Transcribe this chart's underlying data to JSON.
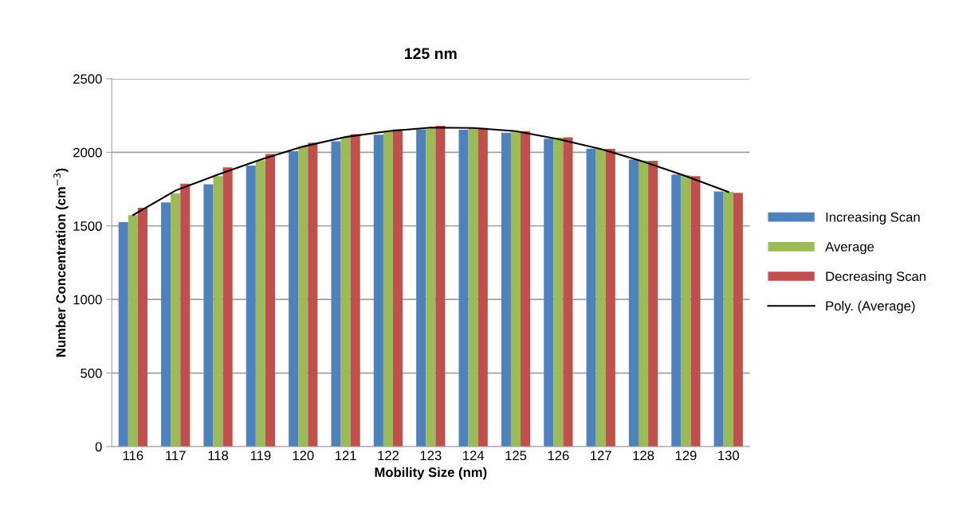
{
  "chart_data": {
    "type": "bar",
    "title": "125 nm",
    "xlabel": "Mobility Size (nm)",
    "ylabel": "Number Concentration (cm$^{−3}$)",
    "categories": [
      "116",
      "117",
      "118",
      "119",
      "120",
      "121",
      "122",
      "123",
      "124",
      "125",
      "126",
      "127",
      "128",
      "129",
      "130"
    ],
    "series": [
      {
        "name": "Increasing Scan",
        "color": "#4f81bd",
        "values": [
          1526,
          1659,
          1783,
          1910,
          2007,
          2075,
          2120,
          2156,
          2153,
          2133,
          2093,
          2025,
          1950,
          1849,
          1734
        ]
      },
      {
        "name": "Average",
        "color": "#9bbb59",
        "values": [
          1573,
          1721,
          1838,
          1946,
          2041,
          2102,
          2144,
          2162,
          2165,
          2140,
          2099,
          2023,
          1942,
          1844,
          1731
        ]
      },
      {
        "name": "Decreasing Scan",
        "color": "#c0504d",
        "values": [
          1623,
          1786,
          1898,
          1988,
          2065,
          2124,
          2156,
          2180,
          2165,
          2144,
          2102,
          2023,
          1942,
          1838,
          1725
        ]
      },
      {
        "name": "Poly. (Average)",
        "type": "line",
        "color": "#000000",
        "values": [
          1573,
          1740,
          1849,
          1950,
          2039,
          2104,
          2144,
          2168,
          2165,
          2144,
          2090,
          2022,
          1937,
          1838,
          1731
        ]
      }
    ],
    "ylim": [
      0,
      2500
    ],
    "yticks": [
      0,
      500,
      1000,
      1500,
      2000,
      2500
    ],
    "grid": "y",
    "legend": "right"
  }
}
